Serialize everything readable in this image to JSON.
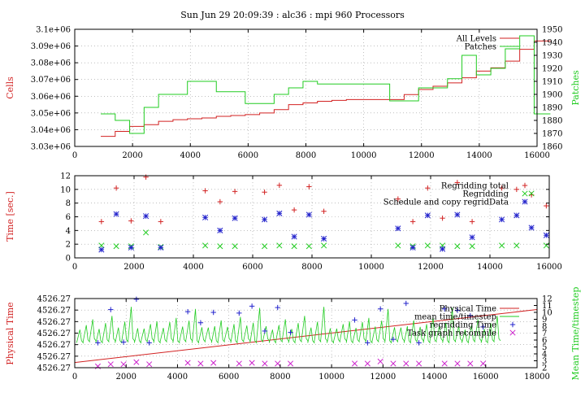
{
  "figure": {
    "title": "Sun Jun 29 20:09:39 : alc36 : mpi 960 Processors"
  },
  "colors": {
    "red": "#d22222",
    "green": "#22cc22",
    "blue": "#2222cc",
    "magenta": "#cc22cc",
    "grid": "#999999",
    "frame": "#000000"
  },
  "chart_data": [
    {
      "type": "line",
      "title": "Sun Jun 29 20:09:39 : alc36 : mpi 960 Processors",
      "xlabel": "",
      "ylabel": "Cells",
      "y2label": "Patches",
      "xlim": [
        0,
        16000
      ],
      "ylim": [
        3030000,
        3100000
      ],
      "y2lim": [
        1860,
        1950
      ],
      "xticks": [
        0,
        2000,
        4000,
        6000,
        8000,
        10000,
        12000,
        14000,
        16000
      ],
      "yticks": [
        3030000,
        3040000,
        3050000,
        3060000,
        3070000,
        3080000,
        3090000,
        3100000
      ],
      "ytick_labels": [
        "3.03e+06",
        "3.04e+06",
        "3.05e+06",
        "3.06e+06",
        "3.07e+06",
        "3.08e+06",
        "3.09e+06",
        "3.1e+06"
      ],
      "y2ticks": [
        1860,
        1870,
        1880,
        1890,
        1900,
        1910,
        1920,
        1930,
        1940,
        1950
      ],
      "grid": true,
      "legend_position": "top-right",
      "series": [
        {
          "name": "All Levels",
          "color": "red",
          "axis": "y",
          "step": true,
          "x": [
            900,
            1400,
            1900,
            2400,
            2900,
            3400,
            3900,
            4400,
            4900,
            5400,
            5900,
            6400,
            6900,
            7400,
            7900,
            8400,
            8900,
            9400,
            10900,
            11400,
            11900,
            12400,
            12900,
            13400,
            13900,
            14400,
            14900,
            15400,
            15900
          ],
          "y": [
            3036000,
            3039000,
            3042000,
            3043000,
            3045000,
            3046000,
            3046500,
            3047000,
            3048000,
            3048500,
            3049000,
            3050000,
            3052000,
            3055000,
            3056000,
            3057000,
            3057500,
            3058000,
            3058000,
            3061000,
            3064000,
            3066000,
            3068000,
            3071000,
            3075000,
            3077000,
            3081000,
            3088000,
            3093000
          ]
        },
        {
          "name": "Patches",
          "color": "green",
          "axis": "y2",
          "step": true,
          "x": [
            900,
            1400,
            1900,
            2400,
            2900,
            3400,
            3900,
            4400,
            4900,
            5400,
            5900,
            6400,
            6900,
            7400,
            7900,
            8400,
            8900,
            9400,
            10900,
            11400,
            11900,
            12400,
            12900,
            13400,
            13900,
            14400,
            14900,
            15400,
            15900
          ],
          "y": [
            1885,
            1880,
            1870,
            1890,
            1900,
            1900,
            1910,
            1910,
            1902,
            1902,
            1893,
            1893,
            1900,
            1905,
            1910,
            1908,
            1908,
            1908,
            1895,
            1895,
            1905,
            1905,
            1912,
            1930,
            1915,
            1920,
            1935,
            1945,
            1885
          ]
        }
      ]
    },
    {
      "type": "scatter",
      "title": "",
      "xlabel": "",
      "ylabel": "Time [sec.]",
      "xlim": [
        0,
        16000
      ],
      "ylim": [
        0,
        12
      ],
      "xticks": [
        0,
        2000,
        4000,
        6000,
        8000,
        10000,
        12000,
        14000,
        16000
      ],
      "yticks": [
        0,
        2,
        4,
        6,
        8,
        10,
        12
      ],
      "grid": true,
      "legend_position": "top-right",
      "series": [
        {
          "name": "Regridding total",
          "color": "red",
          "marker": "plus",
          "x": [
            900,
            1400,
            1900,
            2400,
            2900,
            4400,
            4900,
            5400,
            6400,
            6900,
            7400,
            7900,
            8400,
            10900,
            11400,
            11900,
            12400,
            12900,
            13400,
            14400,
            14900,
            15400,
            15900
          ],
          "y": [
            5.3,
            10.2,
            5.4,
            11.8,
            5.3,
            9.8,
            8.2,
            9.7,
            9.6,
            10.6,
            7.0,
            10.4,
            6.8,
            8.6,
            5.3,
            10.2,
            5.8,
            11.0,
            5.3,
            10.2,
            10.0,
            9.2,
            7.6
          ]
        },
        {
          "name": "Regridding",
          "color": "green",
          "marker": "cross",
          "x": [
            900,
            1400,
            1900,
            2400,
            2900,
            4400,
            4900,
            5400,
            6400,
            6900,
            7400,
            7900,
            8400,
            10900,
            11400,
            11900,
            12400,
            12900,
            13400,
            14400,
            14900,
            15400,
            15900
          ],
          "y": [
            1.8,
            1.7,
            1.7,
            3.7,
            1.6,
            1.8,
            1.7,
            1.7,
            1.7,
            1.8,
            1.7,
            1.7,
            1.8,
            1.8,
            1.7,
            1.8,
            1.8,
            1.7,
            1.7,
            1.8,
            1.8,
            9.4,
            1.8
          ]
        },
        {
          "name": "Schedule and copy regridData",
          "color": "blue",
          "marker": "star",
          "x": [
            900,
            1400,
            1900,
            2400,
            2900,
            4400,
            4900,
            5400,
            6400,
            6900,
            7400,
            7900,
            8400,
            10900,
            11400,
            11900,
            12400,
            12900,
            13400,
            14400,
            14900,
            15400,
            15900
          ],
          "y": [
            1.2,
            6.4,
            1.5,
            6.1,
            1.5,
            5.9,
            4.0,
            5.8,
            5.6,
            6.5,
            3.1,
            6.3,
            2.8,
            4.3,
            1.5,
            6.2,
            1.3,
            6.3,
            3.0,
            5.6,
            6.2,
            4.4,
            3.3
          ]
        }
      ]
    },
    {
      "type": "line",
      "title": "",
      "xlabel": "",
      "ylabel": "Physical Time",
      "y2label": "Mean Time/timestep",
      "xlim": [
        0,
        18000
      ],
      "xticks": [
        0,
        2000,
        4000,
        6000,
        8000,
        10000,
        12000,
        14000,
        16000,
        18000
      ],
      "yticks": [
        0,
        1,
        2,
        3,
        4,
        5,
        6
      ],
      "ytick_labels": [
        "4526.27",
        "4526.27",
        "4526.27",
        "4526.27",
        "4526.27",
        "4526.27",
        "4526.27"
      ],
      "ylim": [
        0,
        6
      ],
      "y2lim": [
        2,
        12
      ],
      "y2ticks": [
        2,
        3,
        4,
        5,
        6,
        7,
        8,
        9,
        10,
        11,
        12
      ],
      "grid": true,
      "legend_position": "top-right",
      "series": [
        {
          "name": "Physical Time",
          "color": "red",
          "axis": "y",
          "x": [
            0,
            18000
          ],
          "y": [
            0.45,
            5.05
          ]
        },
        {
          "name": "mean time/timestep",
          "color": "green",
          "axis": "y2",
          "x_range": [
            0,
            16500
          ],
          "baseline": 5.6,
          "spike_every": 250,
          "spike_heights": [
            1.9,
            2.4,
            3.1,
            2.0,
            2.7,
            3.6,
            2.2,
            2.9,
            4.9,
            2.1
          ]
        },
        {
          "name": "regridding Time",
          "color": "blue",
          "marker": "plus",
          "axis": "y2",
          "x": [
            900,
            1400,
            1900,
            2400,
            2900,
            4400,
            4900,
            5400,
            6400,
            6900,
            7400,
            7900,
            8400,
            10900,
            11400,
            11900,
            12400,
            12900,
            13400,
            14400,
            14900,
            15400,
            15900
          ],
          "y": [
            5.6,
            10.4,
            5.7,
            11.9,
            5.6,
            10.1,
            8.5,
            10.0,
            9.9,
            10.9,
            7.3,
            10.7,
            7.1,
            8.9,
            5.6,
            10.5,
            6.1,
            11.3,
            5.6,
            10.5,
            10.3,
            9.5,
            7.9
          ]
        },
        {
          "name": "Task graph recompile",
          "color": "magenta",
          "marker": "cross",
          "axis": "y2",
          "x": [
            900,
            1400,
            1900,
            2400,
            2900,
            4400,
            4900,
            5400,
            6400,
            6900,
            7400,
            7900,
            8400,
            10900,
            11400,
            11900,
            12400,
            12900,
            13400,
            14400,
            14900,
            15400,
            15900
          ],
          "y": [
            2.2,
            2.5,
            2.5,
            2.8,
            2.5,
            2.7,
            2.6,
            2.7,
            2.6,
            2.7,
            2.6,
            2.6,
            2.6,
            2.6,
            2.6,
            2.9,
            2.6,
            2.6,
            2.6,
            2.6,
            2.6,
            2.6,
            2.6
          ]
        }
      ]
    }
  ]
}
